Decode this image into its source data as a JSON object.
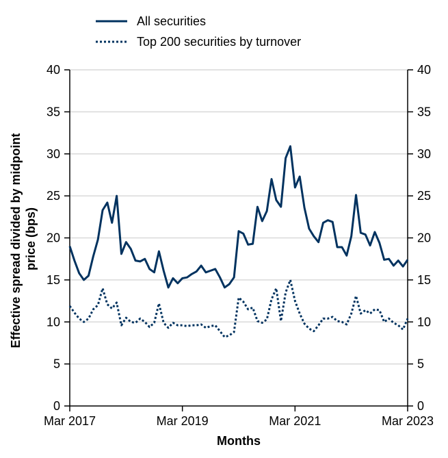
{
  "chart_data": {
    "type": "line",
    "xlabel": "Months",
    "ylabel_lines": [
      "Effective spread divided by midpoint",
      "price (bps)"
    ],
    "ylim": [
      0,
      40
    ],
    "yticks": [
      "0",
      "5",
      "10",
      "15",
      "20",
      "25",
      "30",
      "35",
      "40"
    ],
    "xticks": [
      "Mar 2017",
      "Mar 2019",
      "Mar 2021",
      "Mar 2023"
    ],
    "x_range_months": [
      "2017-03",
      "2023-03"
    ],
    "grid": "horizontal",
    "legend_position": "top-left",
    "color": "#00325f",
    "series": [
      {
        "name": "All securities",
        "style": "solid",
        "x": [
          "2017-03",
          "2017-04",
          "2017-05",
          "2017-06",
          "2017-07",
          "2017-08",
          "2017-09",
          "2017-10",
          "2017-11",
          "2017-12",
          "2018-01",
          "2018-02",
          "2018-03",
          "2018-04",
          "2018-05",
          "2018-06",
          "2018-07",
          "2018-08",
          "2018-09",
          "2018-10",
          "2018-11",
          "2018-12",
          "2019-01",
          "2019-02",
          "2019-03",
          "2019-04",
          "2019-05",
          "2019-06",
          "2019-07",
          "2019-08",
          "2019-09",
          "2019-10",
          "2019-11",
          "2019-12",
          "2020-01",
          "2020-02",
          "2020-03",
          "2020-04",
          "2020-05",
          "2020-06",
          "2020-07",
          "2020-08",
          "2020-09",
          "2020-10",
          "2020-11",
          "2020-12",
          "2021-01",
          "2021-02",
          "2021-03",
          "2021-04",
          "2021-05",
          "2021-06",
          "2021-07",
          "2021-08",
          "2021-09",
          "2021-10",
          "2021-11",
          "2021-12",
          "2022-01",
          "2022-02",
          "2022-03",
          "2022-04",
          "2022-05",
          "2022-06",
          "2022-07",
          "2022-08",
          "2022-09",
          "2022-10",
          "2022-11",
          "2022-12",
          "2023-01",
          "2023-02",
          "2023-03"
        ],
        "values": [
          19.0,
          17.3,
          15.8,
          15.0,
          15.5,
          17.8,
          19.8,
          23.3,
          24.2,
          21.8,
          25.0,
          18.1,
          19.5,
          18.7,
          17.3,
          17.2,
          17.5,
          16.3,
          15.9,
          18.4,
          16.1,
          14.1,
          15.2,
          14.6,
          15.2,
          15.3,
          15.7,
          16.0,
          16.7,
          15.9,
          16.1,
          16.3,
          15.3,
          14.1,
          14.5,
          15.3,
          20.8,
          20.5,
          19.2,
          19.3,
          23.7,
          22.0,
          23.2,
          27.0,
          24.5,
          23.7,
          29.5,
          30.9,
          26.0,
          27.3,
          23.6,
          21.1,
          20.2,
          19.5,
          21.8,
          22.1,
          21.9,
          18.9,
          18.9,
          17.9,
          20.2,
          25.1,
          20.6,
          20.4,
          19.1,
          20.7,
          19.4,
          17.4,
          17.5,
          16.7,
          17.3,
          16.6,
          17.4
        ]
      },
      {
        "name": "Top 200 securities by turnover",
        "style": "dotted",
        "x": [
          "2017-03",
          "2017-04",
          "2017-05",
          "2017-06",
          "2017-07",
          "2017-08",
          "2017-09",
          "2017-10",
          "2017-11",
          "2017-12",
          "2018-01",
          "2018-02",
          "2018-03",
          "2018-04",
          "2018-05",
          "2018-06",
          "2018-07",
          "2018-08",
          "2018-09",
          "2018-10",
          "2018-11",
          "2018-12",
          "2019-01",
          "2019-02",
          "2019-03",
          "2019-04",
          "2019-05",
          "2019-06",
          "2019-07",
          "2019-08",
          "2019-09",
          "2019-10",
          "2019-11",
          "2019-12",
          "2020-01",
          "2020-02",
          "2020-03",
          "2020-04",
          "2020-05",
          "2020-06",
          "2020-07",
          "2020-08",
          "2020-09",
          "2020-10",
          "2020-11",
          "2020-12",
          "2021-01",
          "2021-02",
          "2021-03",
          "2021-04",
          "2021-05",
          "2021-06",
          "2021-07",
          "2021-08",
          "2021-09",
          "2021-10",
          "2021-11",
          "2021-12",
          "2022-01",
          "2022-02",
          "2022-03",
          "2022-04",
          "2022-05",
          "2022-06",
          "2022-07",
          "2022-08",
          "2022-09",
          "2022-10",
          "2022-11",
          "2022-12",
          "2023-01",
          "2023-02",
          "2023-03"
        ],
        "values": [
          11.9,
          11.1,
          10.4,
          10.0,
          10.4,
          11.5,
          12.0,
          14.0,
          12.1,
          11.6,
          12.3,
          9.6,
          10.5,
          10.0,
          9.9,
          10.4,
          10.0,
          9.4,
          9.9,
          12.2,
          9.9,
          9.3,
          9.9,
          9.6,
          9.6,
          9.5,
          9.6,
          9.6,
          9.7,
          9.3,
          9.5,
          9.6,
          8.9,
          8.2,
          8.4,
          8.8,
          12.9,
          12.4,
          11.5,
          11.7,
          10.1,
          9.9,
          10.3,
          12.7,
          14.0,
          10.1,
          13.5,
          15.0,
          12.5,
          11.0,
          9.8,
          9.2,
          8.9,
          9.6,
          10.4,
          10.4,
          10.6,
          10.1,
          10.0,
          9.7,
          11.0,
          13.1,
          11.0,
          11.4,
          11.0,
          11.5,
          11.4,
          10.0,
          10.4,
          9.9,
          9.6,
          9.1,
          10.4
        ]
      }
    ]
  }
}
